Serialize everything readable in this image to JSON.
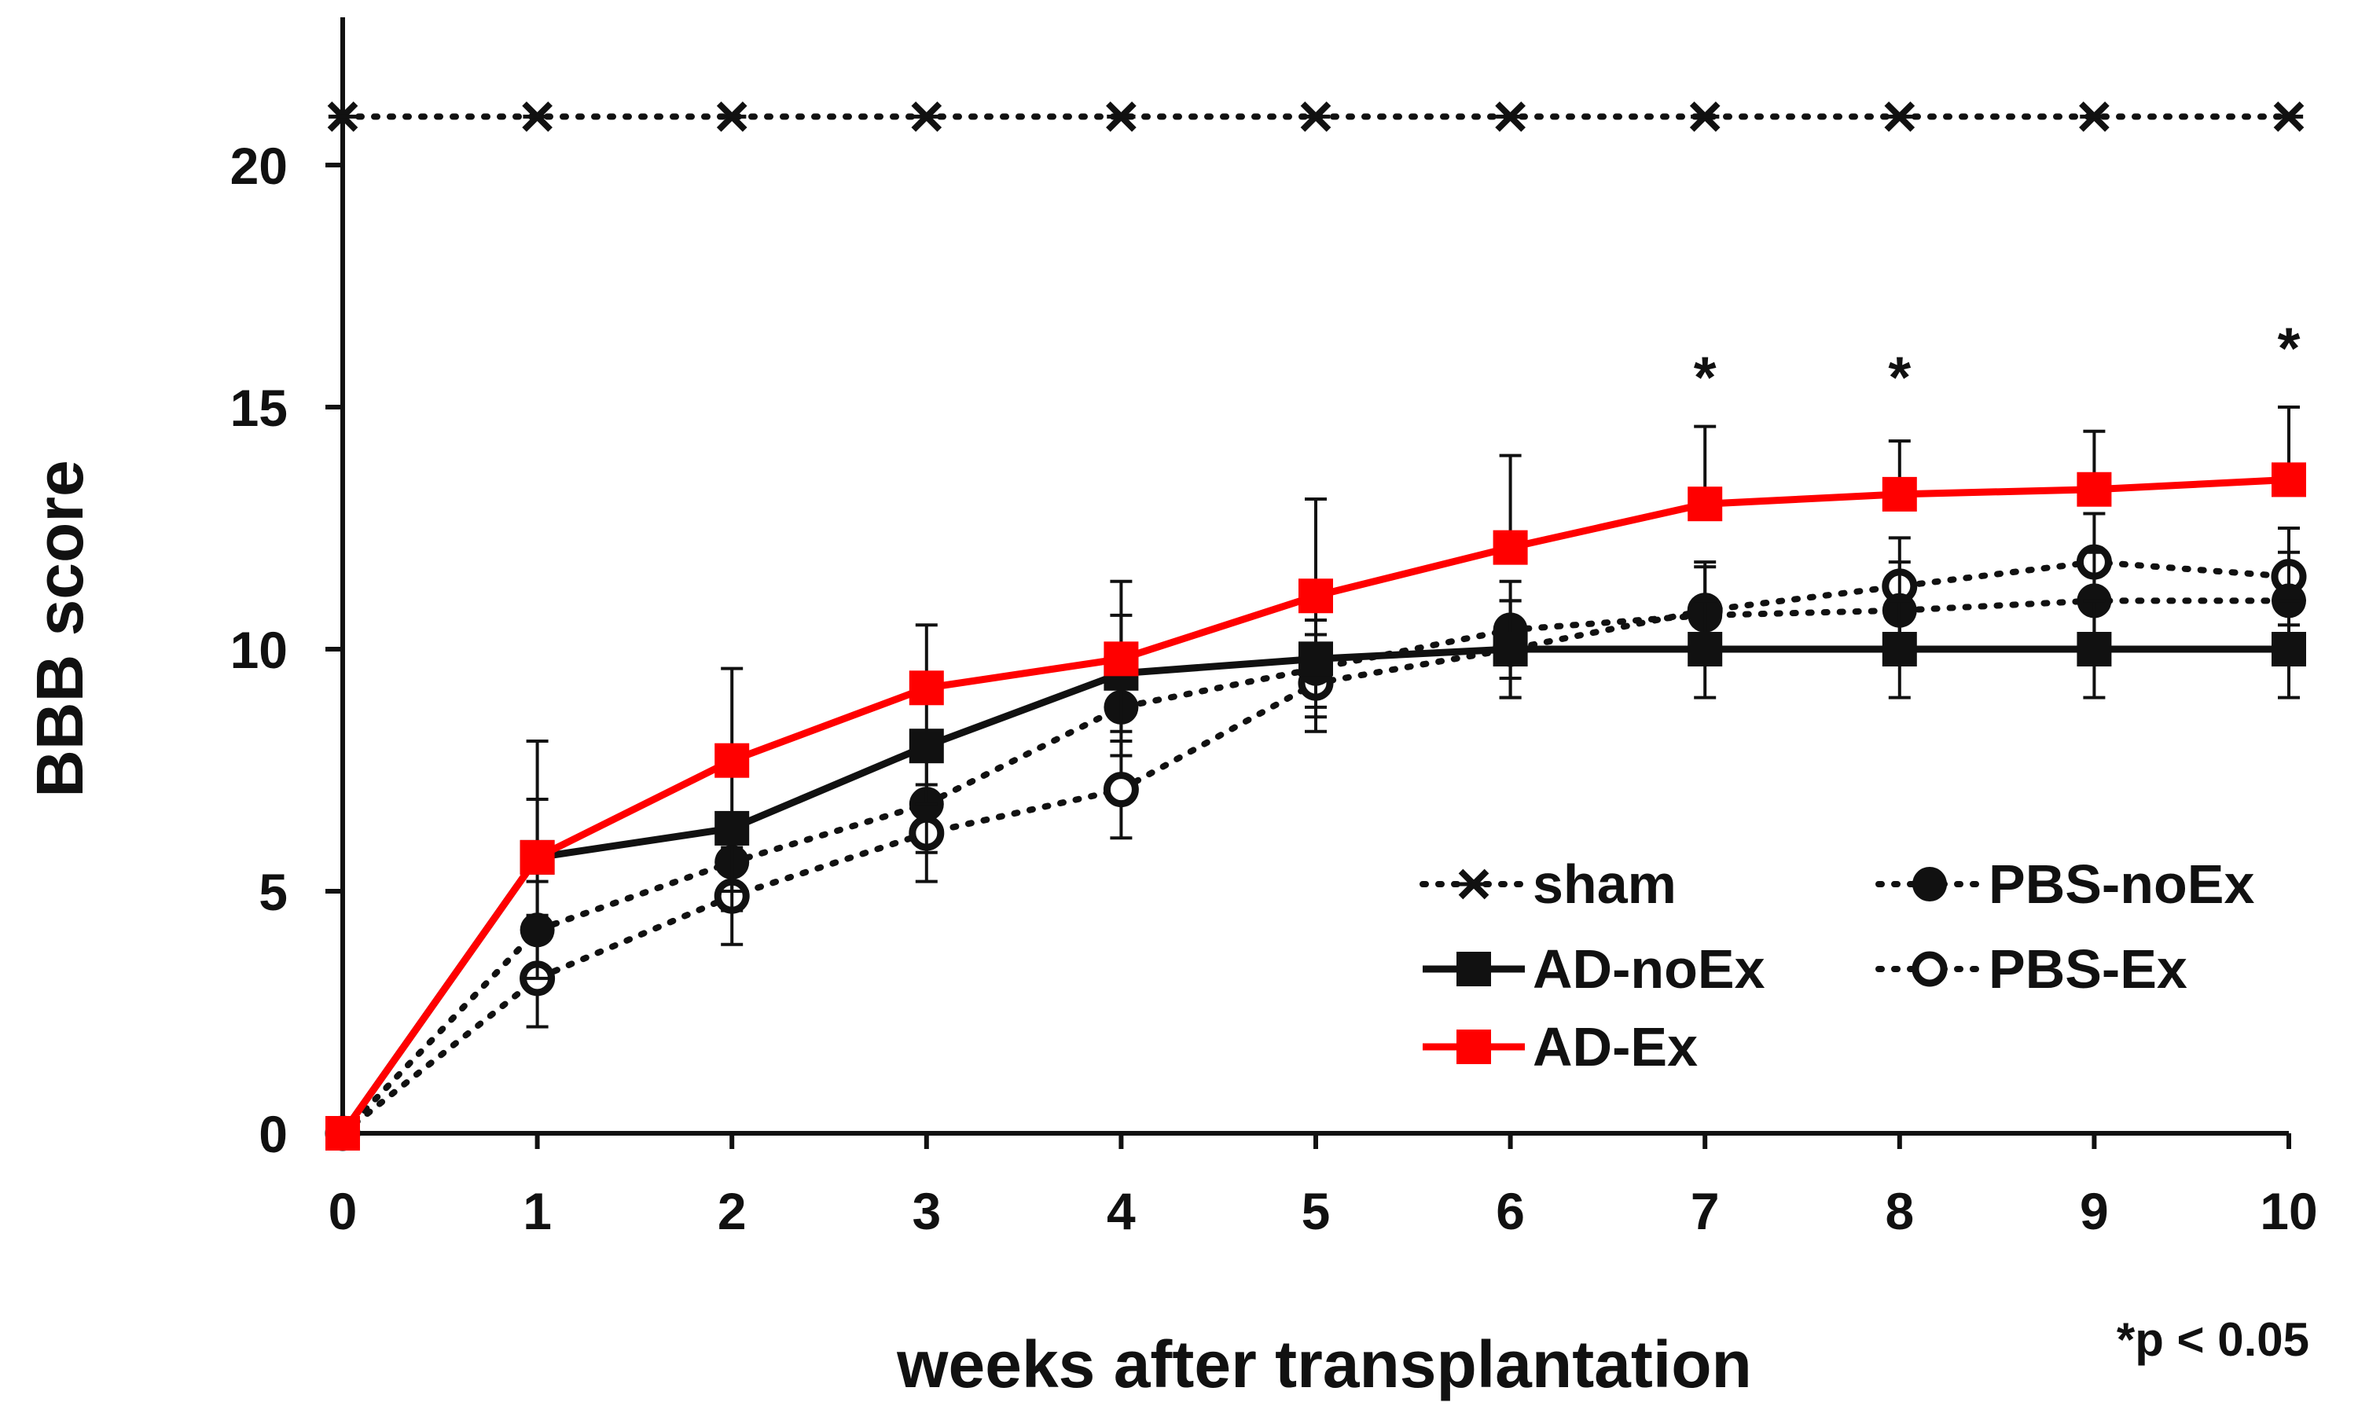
{
  "chart_data": {
    "type": "line",
    "title": "",
    "xlabel": "weeks after transplantation",
    "ylabel": "BBB score",
    "x": [
      0,
      1,
      2,
      3,
      4,
      5,
      6,
      7,
      8,
      9,
      10
    ],
    "xlim": [
      0,
      10
    ],
    "ylim": [
      0,
      21
    ],
    "xticks": [
      0,
      1,
      2,
      3,
      4,
      5,
      6,
      7,
      8,
      9,
      10
    ],
    "yticks": [
      0,
      5,
      10,
      15,
      20
    ],
    "grid": false,
    "legend_position": "bottom-right",
    "series": [
      {
        "name": "sham",
        "color": "#111111",
        "line_style": "dotted",
        "marker": "x",
        "values": [
          21,
          21,
          21,
          21,
          21,
          21,
          21,
          21,
          21,
          21,
          21
        ],
        "errors": [
          0,
          0,
          0,
          0,
          0,
          0,
          0,
          0,
          0,
          0,
          0
        ]
      },
      {
        "name": "AD-noEx",
        "color": "#111111",
        "line_style": "solid",
        "marker": "square-filled",
        "values": [
          0,
          5.7,
          6.3,
          8.0,
          9.5,
          9.8,
          10.0,
          10.0,
          10.0,
          10.0,
          10.0
        ],
        "errors": [
          0,
          1.2,
          1.3,
          1.2,
          1.2,
          1.0,
          1.0,
          1.0,
          1.0,
          1.0,
          1.0
        ]
      },
      {
        "name": "AD-Ex",
        "color": "#ff0000",
        "line_style": "solid",
        "marker": "square-filled",
        "values": [
          0,
          5.7,
          7.7,
          9.2,
          9.8,
          11.1,
          12.1,
          13.0,
          13.2,
          13.3,
          13.5
        ],
        "errors": [
          0,
          2.4,
          1.9,
          1.3,
          1.6,
          2.0,
          1.9,
          1.6,
          1.1,
          1.2,
          1.5
        ]
      },
      {
        "name": "PBS-noEx",
        "color": "#111111",
        "line_style": "dotted",
        "marker": "circle-filled",
        "values": [
          0,
          4.2,
          5.6,
          6.8,
          8.8,
          9.6,
          10.4,
          10.7,
          10.8,
          11.0,
          11.0
        ],
        "errors": [
          0,
          1.0,
          1.0,
          1.0,
          1.0,
          1.0,
          1.0,
          1.0,
          1.0,
          1.0,
          1.0
        ]
      },
      {
        "name": "PBS-Ex",
        "color": "#111111",
        "line_style": "dotted",
        "marker": "circle-open",
        "values": [
          0,
          3.2,
          4.9,
          6.2,
          7.1,
          9.3,
          10.0,
          10.8,
          11.3,
          11.8,
          11.5
        ],
        "errors": [
          0,
          1.0,
          1.0,
          1.0,
          1.0,
          1.0,
          1.0,
          1.0,
          1.0,
          1.0,
          1.0
        ]
      }
    ],
    "annotations": [
      {
        "text": "*",
        "x": 7,
        "y": 15.2
      },
      {
        "text": "*",
        "x": 8,
        "y": 15.2
      },
      {
        "text": "*",
        "x": 10,
        "y": 15.8
      }
    ],
    "footnote": "*p < 0.05"
  }
}
